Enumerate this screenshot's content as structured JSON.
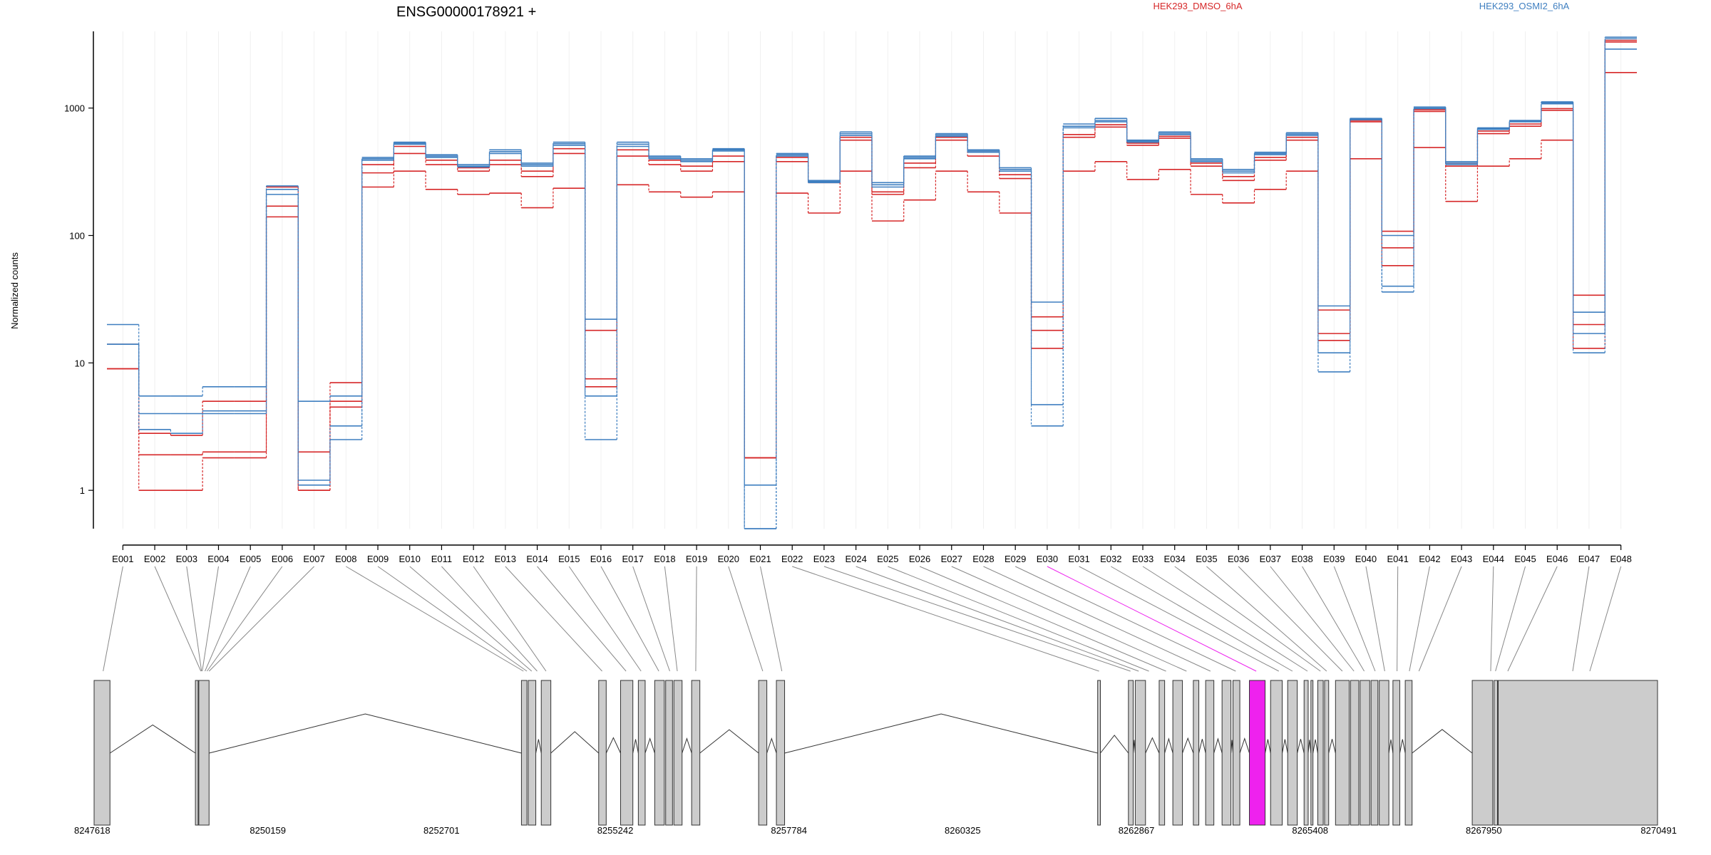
{
  "chart_data": {
    "type": "line",
    "title": "ENSG00000178921 +",
    "xlabel": "",
    "ylabel": "Normalized counts",
    "y_scale": "log",
    "ylim": [
      0.5,
      4000
    ],
    "y_ticks": [
      1,
      10,
      100,
      1000
    ],
    "y_tick_labels": [
      "1",
      "10",
      "100",
      "1000"
    ],
    "grid": "vertical, light",
    "legend_position": "top",
    "categories": [
      "E001",
      "E002",
      "E003",
      "E004",
      "E005",
      "E006",
      "E007",
      "E008",
      "E009",
      "E010",
      "E011",
      "E012",
      "E013",
      "E014",
      "E015",
      "E016",
      "E017",
      "E018",
      "E019",
      "E020",
      "E021",
      "E022",
      "E023",
      "E024",
      "E025",
      "E026",
      "E027",
      "E028",
      "E029",
      "E030",
      "E031",
      "E032",
      "E033",
      "E034",
      "E035",
      "E036",
      "E037",
      "E038",
      "E039",
      "E040",
      "E041",
      "E042",
      "E043",
      "E044",
      "E045",
      "E046",
      "E047",
      "E048"
    ],
    "groups": [
      {
        "name": "HEK293_DMSO_6hA",
        "color": "#d62728"
      },
      {
        "name": "HEK293_OSMI2_6hA",
        "color": "#3f7fc0"
      }
    ],
    "series": [
      {
        "group": 0,
        "values": [
          9,
          1.9,
          1.9,
          2.0,
          2.0,
          140,
          1.0,
          5,
          310,
          440,
          360,
          320,
          360,
          290,
          440,
          18,
          420,
          360,
          320,
          380,
          1.8,
          380,
          270,
          560,
          210,
          340,
          560,
          420,
          280,
          13,
          590,
          710,
          510,
          580,
          350,
          270,
          390,
          560,
          17,
          780,
          58,
          940,
          350,
          630,
          720,
          960,
          20,
          3300
        ]
      },
      {
        "group": 0,
        "values": [
          14,
          2.8,
          2.7,
          5,
          5,
          170,
          2.0,
          7,
          360,
          500,
          390,
          340,
          390,
          320,
          480,
          7.5,
          470,
          390,
          350,
          420,
          1.8,
          410,
          260,
          590,
          220,
          370,
          590,
          450,
          300,
          23,
          620,
          740,
          530,
          600,
          370,
          290,
          410,
          590,
          26,
          800,
          80,
          970,
          370,
          660,
          750,
          990,
          34,
          3400
        ]
      },
      {
        "group": 0,
        "values": [
          9,
          1.0,
          1.0,
          1.8,
          1.8,
          240,
          1.0,
          4.5,
          240,
          320,
          230,
          210,
          215,
          165,
          235,
          6.5,
          250,
          220,
          200,
          220,
          1.8,
          215,
          150,
          320,
          130,
          190,
          320,
          220,
          150,
          18,
          320,
          380,
          275,
          330,
          210,
          180,
          230,
          320,
          15,
          400,
          108,
          490,
          185,
          350,
          400,
          560,
          13,
          1900
        ]
      },
      {
        "group": 1,
        "values": [
          20,
          5.5,
          5.5,
          6.5,
          6.5,
          245,
          5,
          5.5,
          410,
          540,
          430,
          360,
          470,
          370,
          540,
          22,
          540,
          420,
          400,
          480,
          1.1,
          440,
          270,
          650,
          260,
          420,
          630,
          470,
          340,
          30,
          750,
          830,
          560,
          650,
          400,
          330,
          450,
          640,
          28,
          830,
          100,
          1020,
          380,
          700,
          800,
          1120,
          25,
          3600
        ]
      },
      {
        "group": 1,
        "values": [
          14,
          3.0,
          2.8,
          4.2,
          4.2,
          210,
          1.2,
          3.2,
          390,
          520,
          410,
          345,
          440,
          350,
          510,
          5.5,
          500,
          400,
          380,
          460,
          0.5,
          420,
          260,
          610,
          240,
          400,
          600,
          450,
          320,
          4.7,
          700,
          780,
          540,
          620,
          380,
          310,
          430,
          610,
          12,
          810,
          36,
          990,
          360,
          680,
          780,
          1080,
          17,
          2900
        ]
      },
      {
        "group": 1,
        "values": [
          14,
          4.0,
          4.0,
          4.0,
          4.0,
          230,
          1.1,
          2.5,
          400,
          530,
          420,
          350,
          455,
          360,
          525,
          2.5,
          520,
          410,
          390,
          470,
          0.5,
          430,
          265,
          630,
          250,
          410,
          615,
          460,
          330,
          3.2,
          720,
          800,
          550,
          635,
          390,
          320,
          440,
          625,
          8.5,
          820,
          40,
          1000,
          370,
          690,
          790,
          1100,
          12,
          3500
        ]
      }
    ],
    "gene_model": {
      "coordinate_ticks": [
        "8247618",
        "8250159",
        "8252701",
        "8255242",
        "8257784",
        "8260325",
        "8262867",
        "8265408",
        "8267950",
        "8270491"
      ],
      "genome_start": 8247618,
      "genome_end": 8270491,
      "highlight_color": "#ee22ee",
      "exon_blocks": [
        [
          8247618,
          8247850
        ],
        [
          8249100,
          8249140
        ],
        [
          8249150,
          8249300
        ],
        [
          8253870,
          8253950
        ],
        [
          8253970,
          8254080
        ],
        [
          8254160,
          8254300
        ],
        [
          8255000,
          8255110
        ],
        [
          8255320,
          8255500
        ],
        [
          8255580,
          8255680
        ],
        [
          8255820,
          8255960
        ],
        [
          8255980,
          8256080
        ],
        [
          8256100,
          8256220
        ],
        [
          8256360,
          8256480
        ],
        [
          8257340,
          8257460
        ],
        [
          8257600,
          8257720
        ],
        [
          8262300,
          8262340
        ],
        [
          8262750,
          8262820
        ],
        [
          8262850,
          8263000
        ],
        [
          8263200,
          8263280
        ],
        [
          8263400,
          8263540
        ],
        [
          8263700,
          8263780
        ],
        [
          8263880,
          8264000
        ],
        [
          8264120,
          8264250
        ],
        [
          8264280,
          8264380
        ],
        [
          8264520,
          8264750
        ],
        [
          8264830,
          8265000
        ],
        [
          8265080,
          8265220
        ],
        [
          8265320,
          8265380
        ],
        [
          8265420,
          8265450
        ],
        [
          8265520,
          8265600
        ],
        [
          8265620,
          8265680
        ],
        [
          8265780,
          8265980
        ],
        [
          8266000,
          8266120
        ],
        [
          8266140,
          8266280
        ],
        [
          8266300,
          8266400
        ],
        [
          8266420,
          8266560
        ],
        [
          8266620,
          8266720
        ],
        [
          8266800,
          8266900
        ],
        [
          8267780,
          8268080
        ],
        [
          8268100,
          8268150
        ],
        [
          8268160,
          8270491
        ]
      ],
      "highlight_block": [
        8264520,
        8264750
      ],
      "exon_anchor_coords": [
        8247750,
        8249180,
        8249190,
        8249200,
        8249240,
        8249270,
        8249300,
        8253900,
        8253950,
        8254020,
        8254100,
        8254230,
        8255050,
        8255400,
        8255620,
        8255880,
        8256040,
        8256150,
        8256420,
        8257400,
        8257680,
        8262320,
        8262780,
        8262900,
        8263050,
        8263300,
        8263600,
        8263950,
        8264320,
        8264620,
        8264950,
        8265150,
        8265370,
        8265560,
        8265650,
        8265880,
        8266050,
        8266200,
        8266360,
        8266500,
        8266680,
        8266860,
        8267000,
        8268050,
        8268120,
        8268300,
        8269250,
        8269500
      ]
    }
  }
}
